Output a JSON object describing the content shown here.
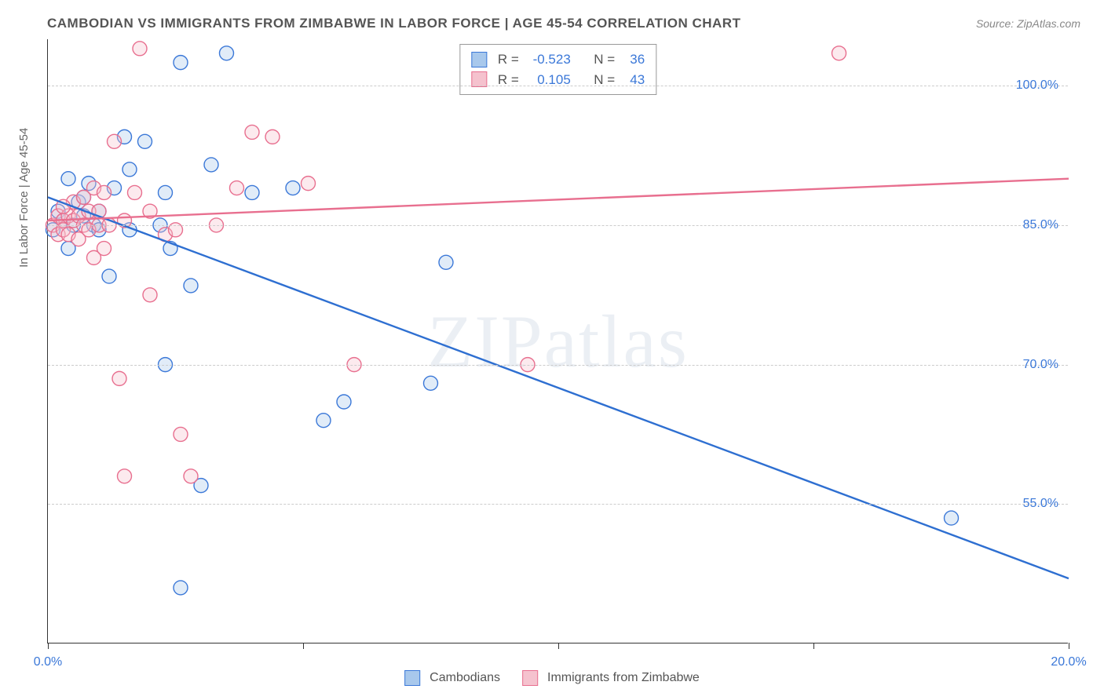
{
  "chart": {
    "type": "scatter",
    "title": "CAMBODIAN VS IMMIGRANTS FROM ZIMBABWE IN LABOR FORCE | AGE 45-54 CORRELATION CHART",
    "source": "Source: ZipAtlas.com",
    "watermark": "ZIPatlas",
    "ylabel": "In Labor Force | Age 45-54",
    "background_color": "#ffffff",
    "grid_color": "#cccccc",
    "axis_color": "#333333",
    "tick_label_color": "#3b78d8",
    "label_fontsize": 15,
    "title_fontsize": 17,
    "xlim": [
      0,
      20
    ],
    "ylim": [
      40,
      105
    ],
    "x_ticks": [
      0,
      5,
      10,
      15,
      20
    ],
    "x_tick_labels": {
      "0": "0.0%",
      "20": "20.0%"
    },
    "y_ticks": [
      55,
      70,
      85,
      100
    ],
    "y_tick_labels": {
      "55": "55.0%",
      "70": "70.0%",
      "85": "85.0%",
      "100": "100.0%"
    },
    "marker_radius": 9,
    "marker_fill_opacity": 0.35,
    "marker_stroke_width": 1.4,
    "line_width": 2.4,
    "series": [
      {
        "name": "Cambodians",
        "color_fill": "#a8c8ec",
        "color_stroke": "#3b78d8",
        "line_color": "#2e6fd1",
        "R": "-0.523",
        "N": "36",
        "trend": {
          "x1": 0,
          "y1": 88,
          "x2": 20,
          "y2": 47
        },
        "points": [
          [
            0.1,
            84.5
          ],
          [
            0.2,
            86.5
          ],
          [
            0.3,
            85.5
          ],
          [
            0.4,
            82.5
          ],
          [
            0.5,
            85.0
          ],
          [
            0.6,
            87.5
          ],
          [
            0.7,
            88.0
          ],
          [
            0.7,
            86.0
          ],
          [
            0.8,
            89.5
          ],
          [
            0.9,
            85.0
          ],
          [
            1.0,
            84.5
          ],
          [
            1.0,
            86.5
          ],
          [
            1.2,
            79.5
          ],
          [
            1.3,
            89.0
          ],
          [
            1.5,
            94.5
          ],
          [
            1.9,
            94.0
          ],
          [
            1.6,
            91.0
          ],
          [
            1.6,
            84.5
          ],
          [
            2.2,
            85.0
          ],
          [
            2.3,
            70.0
          ],
          [
            2.3,
            88.5
          ],
          [
            2.4,
            82.5
          ],
          [
            2.6,
            46.0
          ],
          [
            2.6,
            102.5
          ],
          [
            2.8,
            78.5
          ],
          [
            3.0,
            57.0
          ],
          [
            3.2,
            91.5
          ],
          [
            3.5,
            103.5
          ],
          [
            4.0,
            88.5
          ],
          [
            4.8,
            89.0
          ],
          [
            5.4,
            64.0
          ],
          [
            5.8,
            66.0
          ],
          [
            7.5,
            68.0
          ],
          [
            7.8,
            81.0
          ],
          [
            17.7,
            53.5
          ],
          [
            0.4,
            90.0
          ]
        ]
      },
      {
        "name": "Immigrants from Zimbabwe",
        "color_fill": "#f5c2ce",
        "color_stroke": "#e86f8f",
        "line_color": "#e86f8f",
        "R": "0.105",
        "N": "43",
        "trend": {
          "x1": 0,
          "y1": 85.5,
          "x2": 20,
          "y2": 90
        },
        "points": [
          [
            0.1,
            85.0
          ],
          [
            0.2,
            84.0
          ],
          [
            0.2,
            86.0
          ],
          [
            0.3,
            85.5
          ],
          [
            0.3,
            84.5
          ],
          [
            0.4,
            86.0
          ],
          [
            0.4,
            84.0
          ],
          [
            0.5,
            87.5
          ],
          [
            0.5,
            85.5
          ],
          [
            0.6,
            83.5
          ],
          [
            0.6,
            86.0
          ],
          [
            0.7,
            85.0
          ],
          [
            0.7,
            88.0
          ],
          [
            0.8,
            84.5
          ],
          [
            0.8,
            86.5
          ],
          [
            0.9,
            81.5
          ],
          [
            0.9,
            89.0
          ],
          [
            1.0,
            85.0
          ],
          [
            1.0,
            86.5
          ],
          [
            1.1,
            82.5
          ],
          [
            1.1,
            88.5
          ],
          [
            1.2,
            85.0
          ],
          [
            1.3,
            94.0
          ],
          [
            1.4,
            68.5
          ],
          [
            1.5,
            85.5
          ],
          [
            1.5,
            58.0
          ],
          [
            1.7,
            88.5
          ],
          [
            1.8,
            104.0
          ],
          [
            2.0,
            86.5
          ],
          [
            2.0,
            77.5
          ],
          [
            2.3,
            84.0
          ],
          [
            2.5,
            84.5
          ],
          [
            2.6,
            62.5
          ],
          [
            2.8,
            58.0
          ],
          [
            3.3,
            85.0
          ],
          [
            3.7,
            89.0
          ],
          [
            4.0,
            95.0
          ],
          [
            4.4,
            94.5
          ],
          [
            5.1,
            89.5
          ],
          [
            6.0,
            70.0
          ],
          [
            9.4,
            70.0
          ],
          [
            15.5,
            103.5
          ],
          [
            0.3,
            87.0
          ]
        ]
      }
    ],
    "legend": [
      {
        "label": "Cambodians",
        "fill": "#a8c8ec",
        "stroke": "#3b78d8"
      },
      {
        "label": "Immigrants from Zimbabwe",
        "fill": "#f5c2ce",
        "stroke": "#e86f8f"
      }
    ]
  }
}
